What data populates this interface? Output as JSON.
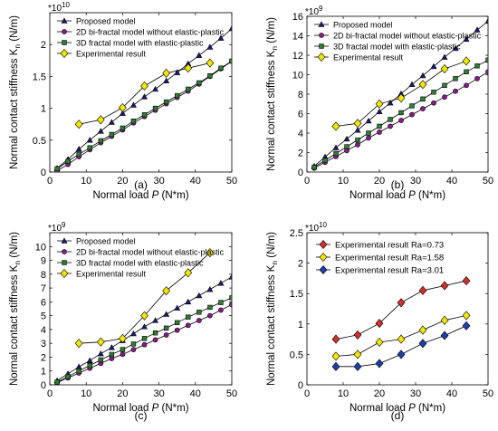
{
  "chart_data": [
    {
      "id": "a",
      "type": "line",
      "panel_label": "(a)",
      "multiplier": "*10",
      "multiplier_exp": "10",
      "xlabel_main": "Normal load ",
      "xlabel_var": "P",
      "xlabel_unit": " (N*m)",
      "ylabel_main": "Normal contact stiffness K",
      "ylabel_sub": "n",
      "ylabel_unit": " (N/m)",
      "xlim": [
        0,
        50
      ],
      "ylim": [
        0,
        2.5
      ],
      "xticks": [
        0,
        10,
        20,
        30,
        40,
        50
      ],
      "yticks": [
        0,
        0.5,
        1,
        1.5,
        2
      ],
      "ytick_labels": [
        "0",
        "0.5",
        "1",
        "1.5",
        "2"
      ],
      "legend": "top-left",
      "series": [
        {
          "name": "Proposed model",
          "marker": "triangle",
          "color": "#1a1a7a",
          "x": [
            2,
            5,
            8,
            11,
            14,
            17,
            20,
            23,
            26,
            29,
            32,
            35,
            38,
            41,
            44,
            47,
            50
          ],
          "y": [
            0.06,
            0.2,
            0.36,
            0.5,
            0.64,
            0.78,
            0.92,
            1.05,
            1.18,
            1.3,
            1.43,
            1.56,
            1.7,
            1.83,
            1.96,
            2.1,
            2.25
          ]
        },
        {
          "name": "2D bi-fractal model without elastic-plastic",
          "marker": "circle",
          "color": "#8b1a8b",
          "x": [
            2,
            5,
            8,
            11,
            14,
            17,
            20,
            23,
            26,
            29,
            32,
            35,
            38,
            41,
            44,
            47,
            50
          ],
          "y": [
            0.02,
            0.12,
            0.24,
            0.35,
            0.46,
            0.56,
            0.66,
            0.77,
            0.87,
            0.97,
            1.07,
            1.17,
            1.27,
            1.38,
            1.5,
            1.62,
            1.74
          ]
        },
        {
          "name": "3D fractal model with elastic-plastic",
          "marker": "square",
          "color": "#2e7d32",
          "x": [
            2,
            5,
            8,
            11,
            14,
            17,
            20,
            23,
            26,
            29,
            32,
            35,
            38,
            41,
            44,
            47,
            50
          ],
          "y": [
            0.05,
            0.17,
            0.28,
            0.38,
            0.49,
            0.59,
            0.69,
            0.8,
            0.9,
            1.0,
            1.1,
            1.2,
            1.3,
            1.4,
            1.51,
            1.63,
            1.74
          ]
        },
        {
          "name": "Experimental result",
          "marker": "diamond",
          "color": "#f2e600",
          "x": [
            8,
            14,
            20,
            26,
            32,
            38,
            44
          ],
          "y": [
            0.75,
            0.82,
            1.01,
            1.35,
            1.55,
            1.63,
            1.71
          ]
        }
      ]
    },
    {
      "id": "b",
      "type": "line",
      "panel_label": "(b)",
      "multiplier": "*10",
      "multiplier_exp": "9",
      "xlabel_main": "Normal load ",
      "xlabel_var": "P",
      "xlabel_unit": " (N*m)",
      "ylabel_main": "Normal contact stiffness K",
      "ylabel_sub": "n",
      "ylabel_unit": " (N/m)",
      "xlim": [
        0,
        50
      ],
      "ylim": [
        0,
        16
      ],
      "xticks": [
        0,
        10,
        20,
        30,
        40,
        50
      ],
      "yticks": [
        0,
        2,
        4,
        6,
        8,
        10,
        12,
        14,
        16
      ],
      "ytick_labels": [
        "0",
        "2",
        "4",
        "6",
        "8",
        "10",
        "12",
        "14",
        "16"
      ],
      "legend": "top-left",
      "series": [
        {
          "name": "Proposed model",
          "marker": "triangle",
          "color": "#1a1a7a",
          "x": [
            2,
            5,
            8,
            11,
            14,
            17,
            20,
            23,
            26,
            29,
            32,
            35,
            38,
            41,
            44,
            47,
            50
          ],
          "y": [
            0.6,
            1.55,
            2.5,
            3.4,
            4.3,
            5.25,
            6.2,
            7.1,
            8.05,
            9.0,
            9.9,
            10.85,
            11.8,
            12.7,
            13.65,
            14.6,
            15.5
          ]
        },
        {
          "name": "2D bi-fractal model without elastic-plastic",
          "marker": "circle",
          "color": "#8b1a8b",
          "x": [
            2,
            5,
            8,
            11,
            14,
            17,
            20,
            23,
            26,
            29,
            32,
            35,
            38,
            41,
            44,
            47,
            50
          ],
          "y": [
            0.4,
            1.0,
            1.6,
            2.2,
            2.8,
            3.5,
            4.1,
            4.7,
            5.3,
            5.9,
            6.5,
            7.1,
            7.7,
            8.3,
            8.9,
            9.6,
            10.3
          ]
        },
        {
          "name": "3D fractal model with elastic-plastic",
          "marker": "square",
          "color": "#2e7d32",
          "x": [
            2,
            5,
            8,
            11,
            14,
            17,
            20,
            23,
            26,
            29,
            32,
            35,
            38,
            41,
            44,
            47,
            50
          ],
          "y": [
            0.5,
            1.2,
            1.9,
            2.6,
            3.3,
            4.0,
            4.7,
            5.4,
            6.1,
            6.8,
            7.5,
            8.2,
            8.9,
            9.6,
            10.3,
            10.9,
            11.5
          ]
        },
        {
          "name": "Experimental result",
          "marker": "diamond",
          "color": "#f2e600",
          "x": [
            8,
            14,
            20,
            26,
            32,
            38,
            44
          ],
          "y": [
            4.7,
            5.0,
            7.0,
            7.6,
            9.0,
            10.6,
            11.4
          ]
        }
      ]
    },
    {
      "id": "c",
      "type": "line",
      "panel_label": "(c)",
      "multiplier": "*10",
      "multiplier_exp": "9",
      "xlabel_main": "Normal load ",
      "xlabel_var": "P",
      "xlabel_unit": " (N*m)",
      "ylabel_main": "Normal contact stiffness K",
      "ylabel_sub": "n",
      "ylabel_unit": " (N/m)",
      "xlim": [
        0,
        50
      ],
      "ylim": [
        0,
        11
      ],
      "xticks": [
        0,
        10,
        20,
        30,
        40,
        50
      ],
      "yticks": [
        0,
        1,
        2,
        3,
        4,
        5,
        6,
        7,
        8,
        9,
        10
      ],
      "ytick_labels": [
        "0",
        "1",
        "2",
        "3",
        "4",
        "5",
        "6",
        "7",
        "8",
        "9",
        "10"
      ],
      "legend": "top-left",
      "series": [
        {
          "name": "Proposed model",
          "marker": "triangle",
          "color": "#1a1a7a",
          "x": [
            2,
            5,
            8,
            11,
            14,
            17,
            20,
            23,
            26,
            29,
            32,
            35,
            38,
            41,
            44,
            47,
            50
          ],
          "y": [
            0.3,
            0.8,
            1.3,
            1.75,
            2.25,
            2.7,
            3.2,
            3.7,
            4.2,
            4.65,
            5.1,
            5.55,
            6.0,
            6.45,
            6.9,
            7.35,
            7.8
          ]
        },
        {
          "name": "2D bi-fractal model without elastic-plastic",
          "marker": "circle",
          "color": "#8b1a8b",
          "x": [
            2,
            5,
            8,
            11,
            14,
            17,
            20,
            23,
            26,
            29,
            32,
            35,
            38,
            41,
            44,
            47,
            50
          ],
          "y": [
            0.15,
            0.5,
            0.85,
            1.2,
            1.55,
            1.9,
            2.2,
            2.55,
            2.9,
            3.25,
            3.6,
            3.95,
            4.3,
            4.65,
            5.0,
            5.4,
            5.8
          ]
        },
        {
          "name": "3D fractal model with elastic-plastic",
          "marker": "square",
          "color": "#2e7d32",
          "x": [
            2,
            5,
            8,
            11,
            14,
            17,
            20,
            23,
            26,
            29,
            32,
            35,
            38,
            41,
            44,
            47,
            50
          ],
          "y": [
            0.2,
            0.6,
            1.0,
            1.4,
            1.8,
            2.2,
            2.55,
            2.95,
            3.35,
            3.75,
            4.1,
            4.5,
            4.9,
            5.25,
            5.6,
            5.95,
            6.3
          ]
        },
        {
          "name": "Experimental result",
          "marker": "diamond",
          "color": "#f2e600",
          "x": [
            8,
            14,
            20,
            26,
            32,
            38,
            44
          ],
          "y": [
            3.0,
            3.1,
            3.35,
            5.0,
            6.8,
            8.1,
            9.55
          ]
        }
      ]
    },
    {
      "id": "d",
      "type": "line",
      "panel_label": "(d)",
      "multiplier": "*10",
      "multiplier_exp": "10",
      "xlabel_main": "Normal load ",
      "xlabel_var": "P",
      "xlabel_unit": " (N*m)",
      "ylabel_main": "Normal contact stiffness K",
      "ylabel_sub": "n",
      "ylabel_unit": " (N/m)",
      "xlim": [
        0,
        50
      ],
      "ylim": [
        0,
        2.5
      ],
      "xticks": [
        0,
        10,
        20,
        30,
        40,
        50
      ],
      "yticks": [
        0,
        0.5,
        1,
        1.5,
        2,
        2.5
      ],
      "ytick_labels": [
        "0",
        "0.5",
        "1",
        "1.5",
        "2",
        "2.5"
      ],
      "legend": "top-left",
      "series": [
        {
          "name": "Experimental result Ra=0.73",
          "marker": "diamond",
          "color": "#d32f2f",
          "x": [
            8,
            14,
            20,
            26,
            32,
            38,
            44
          ],
          "y": [
            0.75,
            0.82,
            1.01,
            1.35,
            1.55,
            1.63,
            1.71
          ]
        },
        {
          "name": "Experimental result Ra=1.58",
          "marker": "diamond",
          "color": "#f2e600",
          "x": [
            8,
            14,
            20,
            26,
            32,
            38,
            44
          ],
          "y": [
            0.47,
            0.5,
            0.7,
            0.75,
            0.9,
            1.06,
            1.14
          ]
        },
        {
          "name": "Experimental result Ra=3.01",
          "marker": "diamond",
          "color": "#1e3fa8",
          "x": [
            8,
            14,
            20,
            26,
            32,
            38,
            44
          ],
          "y": [
            0.3,
            0.3,
            0.35,
            0.5,
            0.68,
            0.81,
            0.97
          ]
        }
      ]
    }
  ]
}
